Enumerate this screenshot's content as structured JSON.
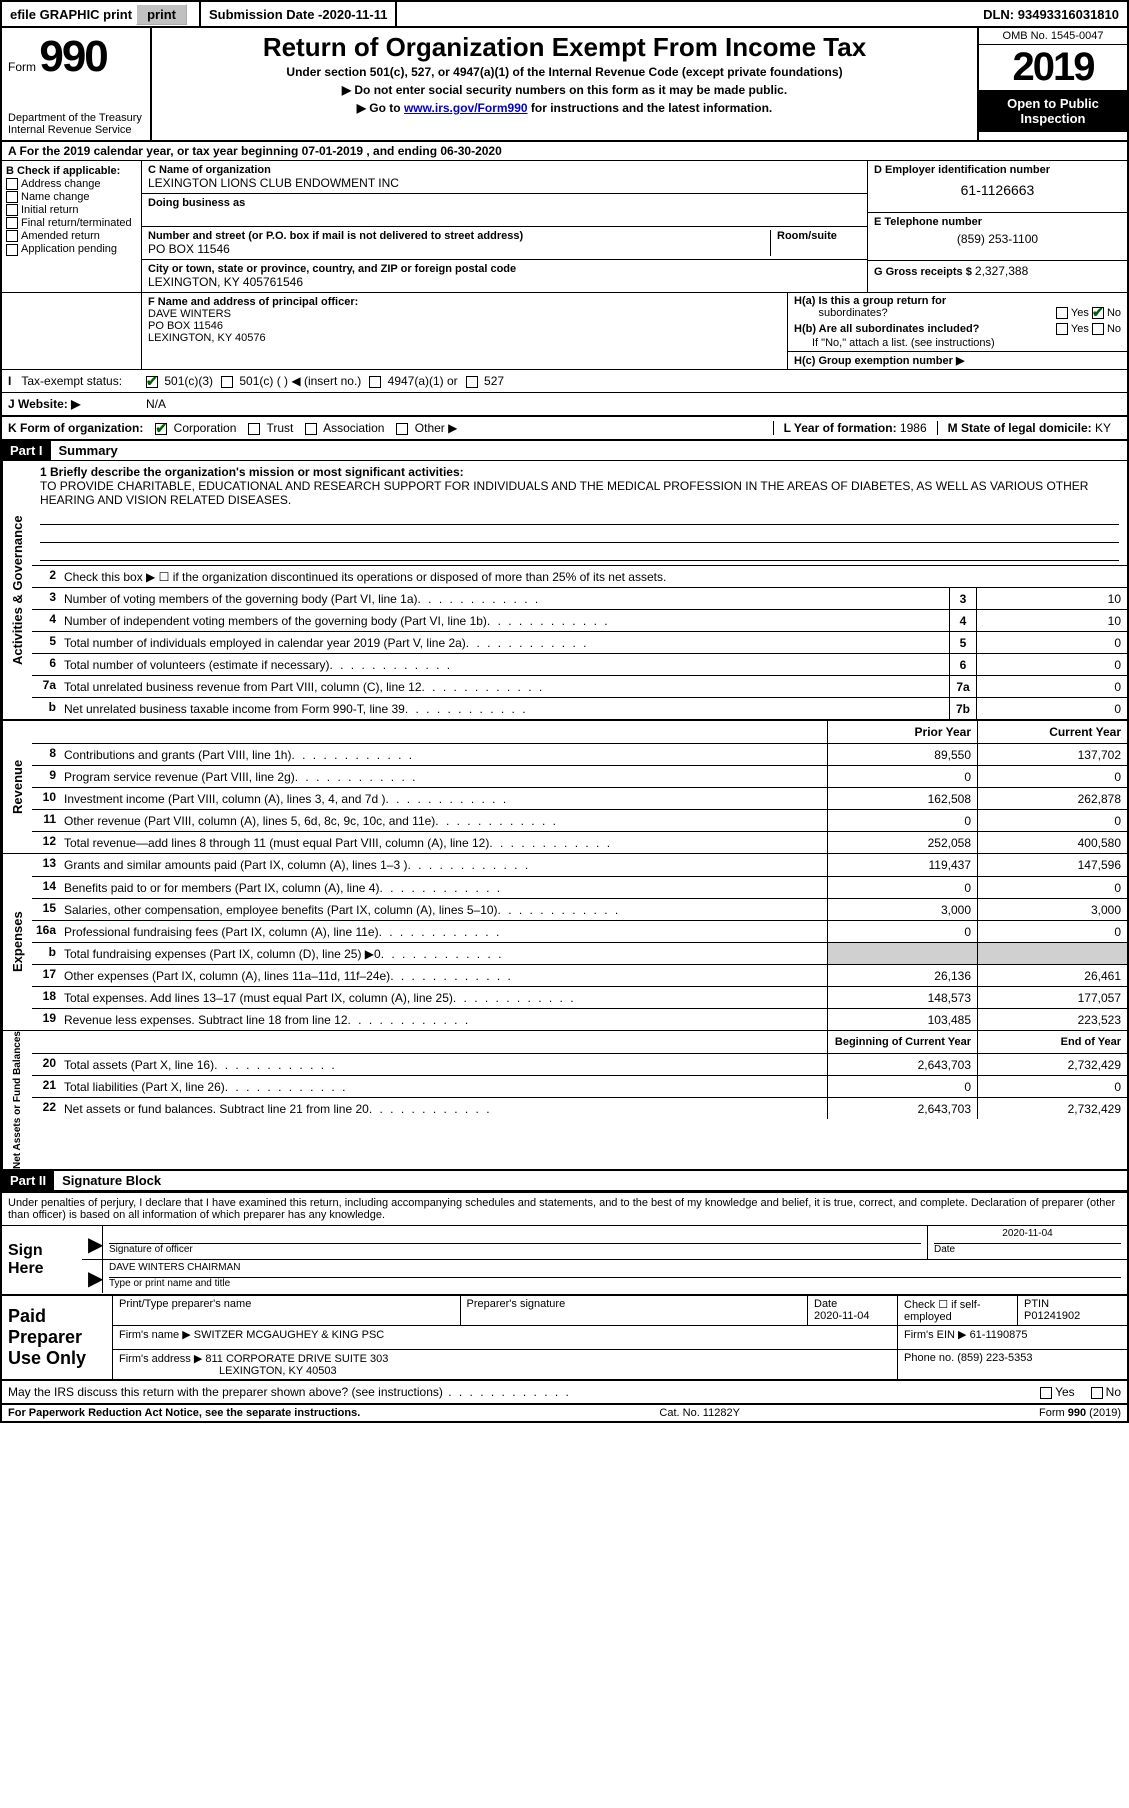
{
  "topbar": {
    "efile": "efile GRAPHIC print",
    "submission_label": "Submission Date - ",
    "submission_date": "2020-11-11",
    "dln_label": "DLN: ",
    "dln": "93493316031810"
  },
  "header": {
    "form_word": "Form",
    "form_num": "990",
    "dept1": "Department of the Treasury",
    "dept2": "Internal Revenue Service",
    "title": "Return of Organization Exempt From Income Tax",
    "subtitle": "Under section 501(c), 527, or 4947(a)(1) of the Internal Revenue Code (except private foundations)",
    "note1": "Do not enter social security numbers on this form as it may be made public.",
    "note2_pre": "Go to ",
    "note2_link": "www.irs.gov/Form990",
    "note2_post": " for instructions and the latest information.",
    "omb": "OMB No. 1545-0047",
    "year": "2019",
    "inspect": "Open to Public Inspection"
  },
  "rowA": "A For the 2019 calendar year, or tax year beginning 07-01-2019    , and ending 06-30-2020",
  "boxB": {
    "label": "B Check if applicable:",
    "addr": "Address change",
    "name": "Name change",
    "initial": "Initial return",
    "final": "Final return/terminated",
    "amended": "Amended return",
    "app": "Application pending"
  },
  "boxC": {
    "label": "C Name of organization",
    "org": "LEXINGTON LIONS CLUB ENDOWMENT INC",
    "dba_label": "Doing business as",
    "street_label": "Number and street (or P.O. box if mail is not delivered to street address)",
    "room_label": "Room/suite",
    "street": "PO BOX 11546",
    "city_label": "City or town, state or province, country, and ZIP or foreign postal code",
    "city": "LEXINGTON, KY  405761546"
  },
  "boxD": {
    "label": "D Employer identification number",
    "ein": "61-1126663"
  },
  "boxE": {
    "label": "E Telephone number",
    "phone": "(859) 253-1100"
  },
  "boxG": {
    "label": "G Gross receipts $ ",
    "val": "2,327,388"
  },
  "boxF": {
    "label": "F Name and address of principal officer:",
    "name": "DAVE WINTERS",
    "addr1": "PO BOX 11546",
    "addr2": "LEXINGTON, KY  40576"
  },
  "boxH": {
    "a_label": "H(a)  Is this a group return for",
    "a_sub": "subordinates?",
    "b_label": "H(b)  Are all subordinates included?",
    "b_note": "If \"No,\" attach a list. (see instructions)",
    "c_label": "H(c)  Group exemption number ▶",
    "yes": "Yes",
    "no": "No"
  },
  "taxExempt": {
    "label": "Tax-exempt status:",
    "c3": "501(c)(3)",
    "c": "501(c) (   ) ◀ (insert no.)",
    "a1": "4947(a)(1) or",
    "527": "527"
  },
  "rowJ": {
    "label": "J   Website: ▶",
    "val": "N/A"
  },
  "rowK": {
    "label": "K Form of organization:",
    "corp": "Corporation",
    "trust": "Trust",
    "assoc": "Association",
    "other": "Other ▶",
    "l_label": "L Year of formation: ",
    "l_val": "1986",
    "m_label": "M State of legal domicile: ",
    "m_val": "KY"
  },
  "part1": {
    "hdr": "Part I",
    "title": "Summary",
    "l1_label": "1   Briefly describe the organization's mission or most significant activities:",
    "l1_text": "TO PROVIDE CHARITABLE, EDUCATIONAL AND RESEARCH SUPPORT FOR INDIVIDUALS AND THE MEDICAL PROFESSION IN THE AREAS OF DIABETES, AS WELL AS VARIOUS OTHER HEARING AND VISION RELATED DISEASES.",
    "l2": "Check this box ▶ ☐  if the organization discontinued its operations or disposed of more than 25% of its net assets.",
    "lines_gov": [
      {
        "n": "3",
        "t": "Number of voting members of the governing body (Part VI, line 1a)",
        "box": "3",
        "v": "10"
      },
      {
        "n": "4",
        "t": "Number of independent voting members of the governing body (Part VI, line 1b)",
        "box": "4",
        "v": "10"
      },
      {
        "n": "5",
        "t": "Total number of individuals employed in calendar year 2019 (Part V, line 2a)",
        "box": "5",
        "v": "0"
      },
      {
        "n": "6",
        "t": "Total number of volunteers (estimate if necessary)",
        "box": "6",
        "v": "0"
      },
      {
        "n": "7a",
        "t": "Total unrelated business revenue from Part VIII, column (C), line 12",
        "box": "7a",
        "v": "0"
      },
      {
        "n": "b",
        "t": "Net unrelated business taxable income from Form 990-T, line 39",
        "box": "7b",
        "v": "0"
      }
    ],
    "prior_hdr": "Prior Year",
    "current_hdr": "Current Year",
    "lines_rev": [
      {
        "n": "8",
        "t": "Contributions and grants (Part VIII, line 1h)",
        "py": "89,550",
        "cy": "137,702"
      },
      {
        "n": "9",
        "t": "Program service revenue (Part VIII, line 2g)",
        "py": "0",
        "cy": "0"
      },
      {
        "n": "10",
        "t": "Investment income (Part VIII, column (A), lines 3, 4, and 7d )",
        "py": "162,508",
        "cy": "262,878"
      },
      {
        "n": "11",
        "t": "Other revenue (Part VIII, column (A), lines 5, 6d, 8c, 9c, 10c, and 11e)",
        "py": "0",
        "cy": "0"
      },
      {
        "n": "12",
        "t": "Total revenue—add lines 8 through 11 (must equal Part VIII, column (A), line 12)",
        "py": "252,058",
        "cy": "400,580"
      }
    ],
    "lines_exp": [
      {
        "n": "13",
        "t": "Grants and similar amounts paid (Part IX, column (A), lines 1–3 )",
        "py": "119,437",
        "cy": "147,596"
      },
      {
        "n": "14",
        "t": "Benefits paid to or for members (Part IX, column (A), line 4)",
        "py": "0",
        "cy": "0"
      },
      {
        "n": "15",
        "t": "Salaries, other compensation, employee benefits (Part IX, column (A), lines 5–10)",
        "py": "3,000",
        "cy": "3,000"
      },
      {
        "n": "16a",
        "t": "Professional fundraising fees (Part IX, column (A), line 11e)",
        "py": "0",
        "cy": "0"
      },
      {
        "n": "b",
        "t": "Total fundraising expenses (Part IX, column (D), line 25) ▶0",
        "py": "",
        "cy": "",
        "shade": true
      },
      {
        "n": "17",
        "t": "Other expenses (Part IX, column (A), lines 11a–11d, 11f–24e)",
        "py": "26,136",
        "cy": "26,461"
      },
      {
        "n": "18",
        "t": "Total expenses. Add lines 13–17 (must equal Part IX, column (A), line 25)",
        "py": "148,573",
        "cy": "177,057"
      },
      {
        "n": "19",
        "t": "Revenue less expenses. Subtract line 18 from line 12",
        "py": "103,485",
        "cy": "223,523"
      }
    ],
    "boy_hdr": "Beginning of Current Year",
    "eoy_hdr": "End of Year",
    "lines_net": [
      {
        "n": "20",
        "t": "Total assets (Part X, line 16)",
        "py": "2,643,703",
        "cy": "2,732,429"
      },
      {
        "n": "21",
        "t": "Total liabilities (Part X, line 26)",
        "py": "0",
        "cy": "0"
      },
      {
        "n": "22",
        "t": "Net assets or fund balances. Subtract line 21 from line 20",
        "py": "2,643,703",
        "cy": "2,732,429"
      }
    ]
  },
  "vtabs": {
    "gov": "Activities & Governance",
    "rev": "Revenue",
    "exp": "Expenses",
    "net": "Net Assets or Fund Balances"
  },
  "part2": {
    "hdr": "Part II",
    "title": "Signature Block",
    "decl": "Under penalties of perjury, I declare that I have examined this return, including accompanying schedules and statements, and to the best of my knowledge and belief, it is true, correct, and complete. Declaration of preparer (other than officer) is based on all information of which preparer has any knowledge."
  },
  "sign": {
    "here": "Sign Here",
    "sig_label": "Signature of officer",
    "date_label": "Date",
    "date": "2020-11-04",
    "name": "DAVE WINTERS CHAIRMAN",
    "name_label": "Type or print name and title"
  },
  "paid": {
    "label": "Paid Preparer Use Only",
    "print_label": "Print/Type preparer's name",
    "sig_label": "Preparer's signature",
    "date_label": "Date",
    "date": "2020-11-04",
    "check_label": "Check ☐ if self-employed",
    "ptin_label": "PTIN",
    "ptin": "P01241902",
    "firm_name_label": "Firm's name    ▶",
    "firm_name": "SWITZER MCGAUGHEY & KING PSC",
    "firm_ein_label": "Firm's EIN ▶",
    "firm_ein": "61-1190875",
    "firm_addr_label": "Firm's address ▶",
    "firm_addr1": "811 CORPORATE DRIVE SUITE 303",
    "firm_addr2": "LEXINGTON, KY  40503",
    "phone_label": "Phone no. ",
    "phone": "(859) 223-5353"
  },
  "discuss": {
    "q": "May the IRS discuss this return with the preparer shown above? (see instructions)",
    "yes": "Yes",
    "no": "No"
  },
  "footer": {
    "left": "For Paperwork Reduction Act Notice, see the separate instructions.",
    "mid": "Cat. No. 11282Y",
    "right": "Form 990 (2019)"
  },
  "colors": {
    "link": "#0000cc",
    "check_green": "#006000",
    "shade": "#d0d0d0"
  }
}
